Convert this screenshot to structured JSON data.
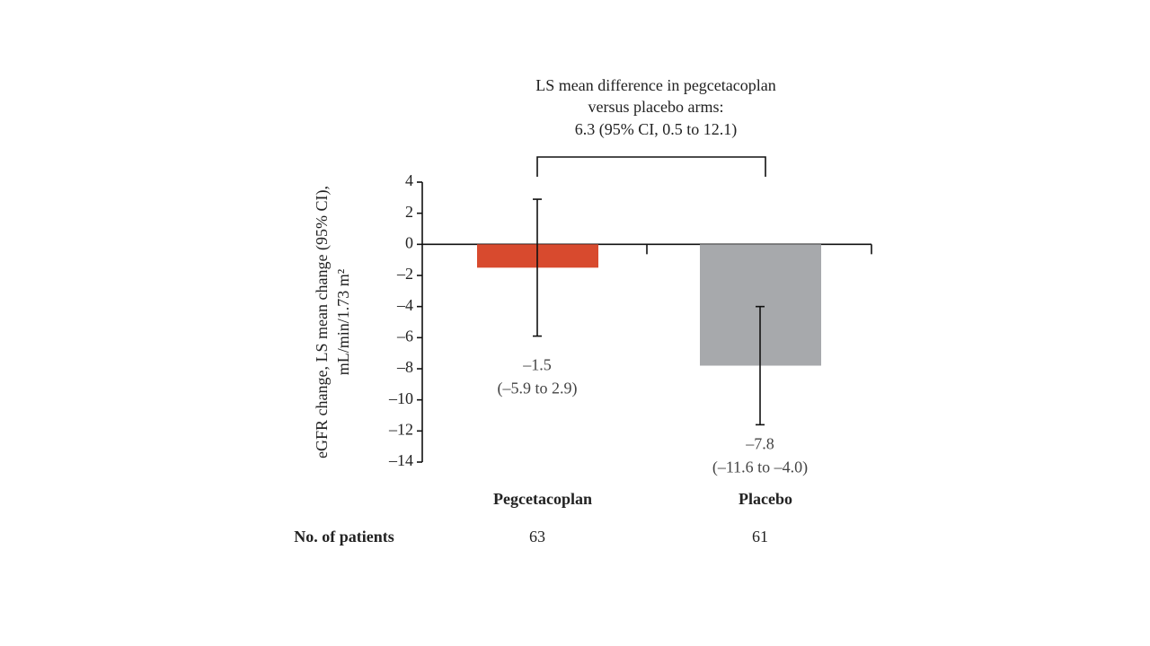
{
  "chart_data": {
    "type": "bar",
    "annotation": [
      "LS mean difference in pegcetacoplan",
      "versus placebo arms:",
      "6.3 (95% CI, 0.5 to 12.1)"
    ],
    "ylabel": [
      "eGFR change, LS mean change (95% CI),",
      "mL/min/1.73 m²"
    ],
    "categories": [
      "Pegcetacoplan",
      "Placebo"
    ],
    "values": [
      -1.5,
      -7.8
    ],
    "value_labels": [
      "–1.5",
      "–7.8"
    ],
    "ci_low": [
      -5.9,
      -11.6
    ],
    "ci_high": [
      2.9,
      -4.0
    ],
    "ci_labels": [
      "(–5.9 to 2.9)",
      "(–11.6 to –4.0)"
    ],
    "colors": [
      "#d84a2e",
      "#a7a9ac"
    ],
    "ylim": [
      -14,
      4
    ],
    "yticks": [
      4,
      2,
      0,
      {
        "value": -2,
        "label": "–2"
      },
      {
        "value": -4,
        "label": "–4"
      },
      {
        "value": -6,
        "label": "–6"
      },
      {
        "value": -8,
        "label": "–8"
      },
      {
        "value": -10,
        "label": "–10"
      },
      {
        "value": -12,
        "label": "–12"
      },
      {
        "value": -14,
        "label": "–14"
      }
    ],
    "patients": {
      "label": "No. of patients",
      "values": [
        63,
        61
      ]
    }
  }
}
